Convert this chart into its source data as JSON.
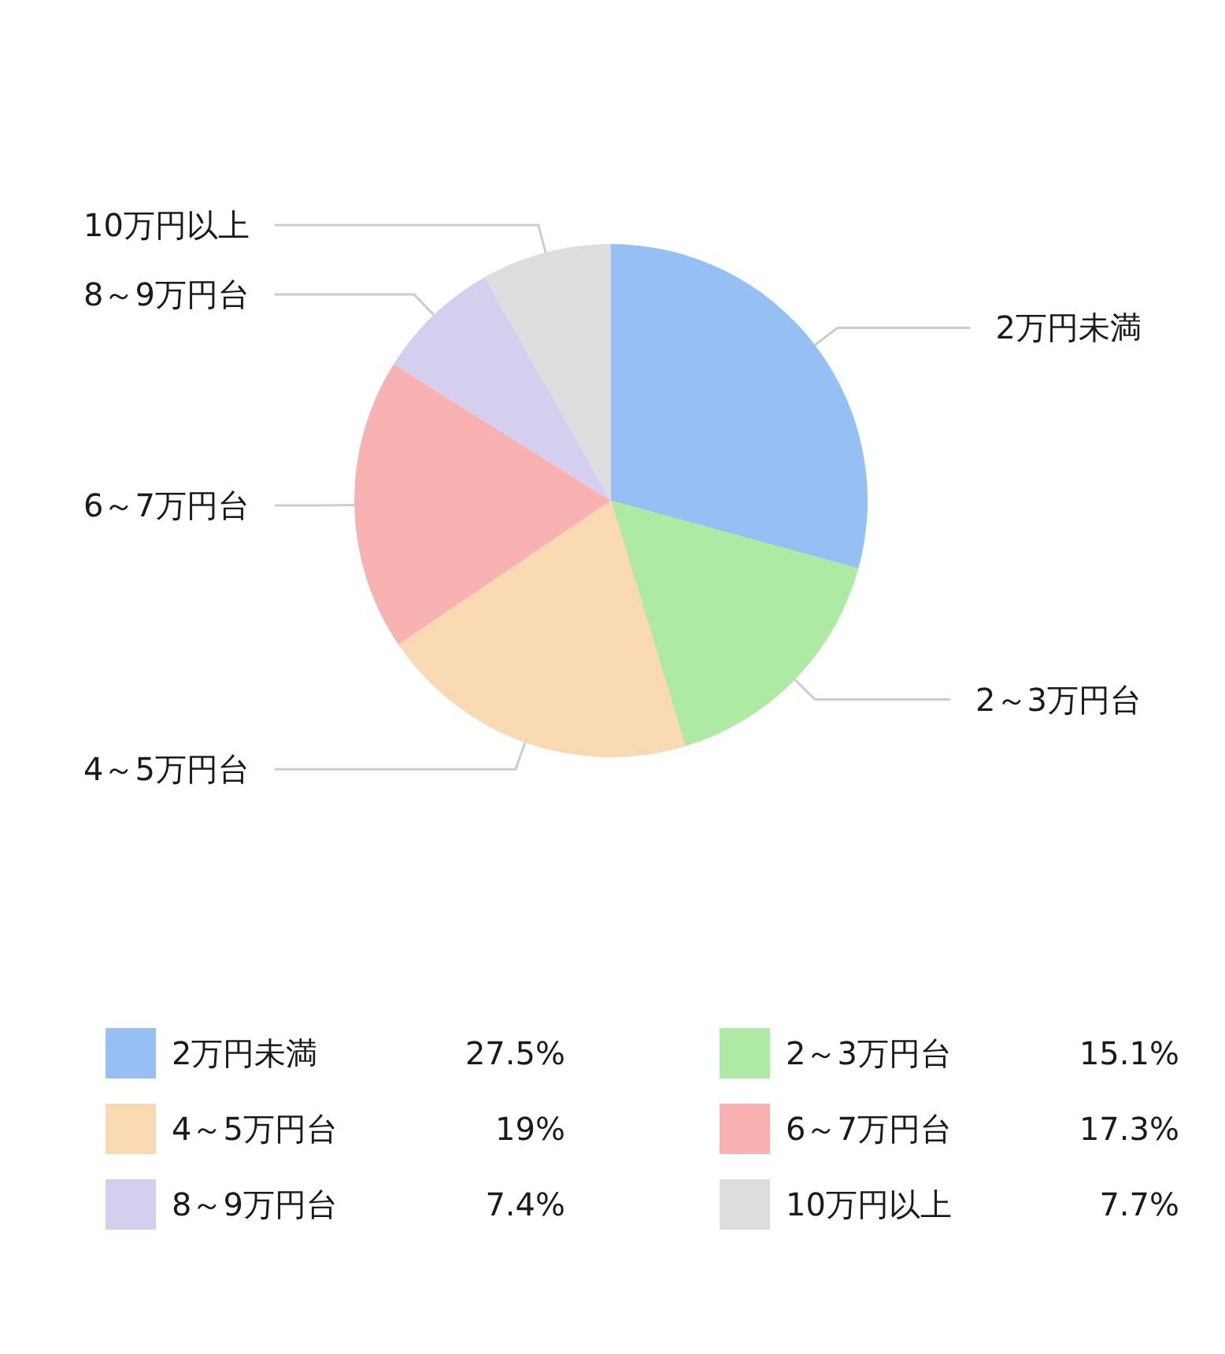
{
  "chart_data": {
    "type": "pie",
    "categories": [
      "2万円未満",
      "2～3万円台",
      "4～5万円台",
      "6～7万円台",
      "8～9万円台",
      "10万円以上"
    ],
    "values": [
      27.5,
      15.1,
      19,
      17.3,
      7.4,
      7.7
    ],
    "colors": [
      "#96c0f3",
      "#aeeaa3",
      "#f8d9b2",
      "#f9b2b2",
      "#d4cfef",
      "#dddddd"
    ],
    "value_labels": [
      "27.5%",
      "15.1%",
      "19%",
      "17.3%",
      "7.4%",
      "7.7%"
    ],
    "legend": "bottom"
  }
}
